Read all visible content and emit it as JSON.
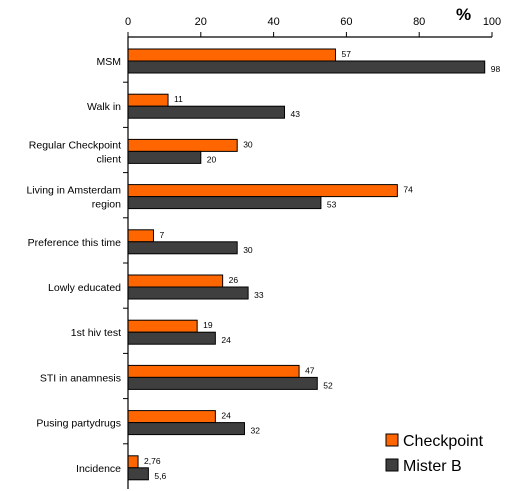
{
  "chart_data": {
    "type": "bar",
    "orientation": "horizontal",
    "title": "",
    "xlabel": "",
    "ylabel": "",
    "unit": "%",
    "xlim": [
      0,
      100
    ],
    "xticks": [
      0,
      20,
      40,
      60,
      80,
      100
    ],
    "xtick_labels": [
      "0",
      "20",
      "40",
      "60",
      "80",
      "100"
    ],
    "grid": false,
    "legend_position": "bottom-right",
    "categories": [
      [
        "MSM"
      ],
      [
        "Walk in"
      ],
      [
        "Regular Checkpoint",
        "client"
      ],
      [
        "Living in Amsterdam",
        "region"
      ],
      [
        "Preference this time"
      ],
      [
        "Lowly educated"
      ],
      [
        "1st hiv test"
      ],
      [
        "STI in anamnesis"
      ],
      [
        "Pusing partydrugs"
      ],
      [
        "Incidence"
      ]
    ],
    "series": [
      {
        "name": "Checkpoint",
        "color": "#ff6600",
        "values": [
          57,
          11,
          30,
          74,
          7,
          26,
          19,
          47,
          24,
          2.76
        ],
        "labels": [
          "57",
          "11",
          "30",
          "74",
          "7",
          "26",
          "19",
          "47",
          "24",
          "2,76"
        ]
      },
      {
        "name": "Mister B",
        "color": "#3f3f3f",
        "values": [
          98,
          43,
          20,
          53,
          30,
          33,
          24,
          52,
          32,
          5.6
        ],
        "labels": [
          "98",
          "43",
          "20",
          "53",
          "30",
          "33",
          "24",
          "52",
          "32",
          "5,6"
        ]
      }
    ]
  }
}
